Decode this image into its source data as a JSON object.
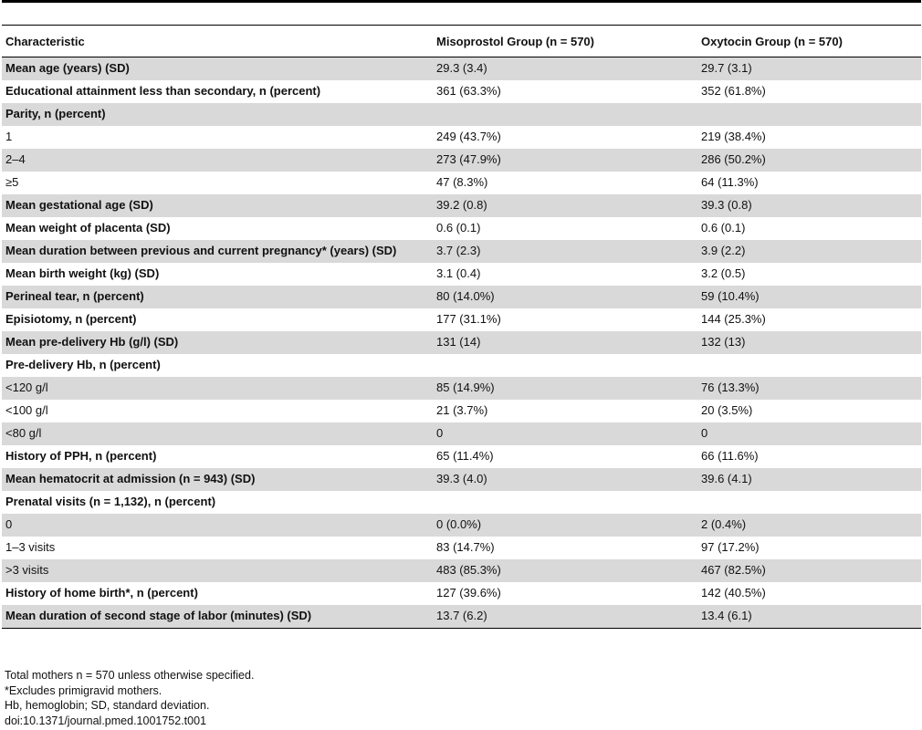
{
  "table": {
    "headers": [
      "Characteristic",
      "Misoprostol Group (n = 570)",
      "Oxytocin Group (n = 570)"
    ],
    "rows": [
      {
        "label": "Mean age (years) (SD)",
        "bold": true,
        "shaded": true,
        "misoprostol": "29.3 (3.4)",
        "oxytocin": "29.7 (3.1)"
      },
      {
        "label": "Educational attainment less than secondary, n (percent)",
        "bold": true,
        "shaded": false,
        "misoprostol": "361 (63.3%)",
        "oxytocin": "352 (61.8%)"
      },
      {
        "label": "Parity, n (percent)",
        "bold": true,
        "shaded": true,
        "misoprostol": "",
        "oxytocin": ""
      },
      {
        "label": "1",
        "bold": false,
        "shaded": false,
        "misoprostol": "249 (43.7%)",
        "oxytocin": "219 (38.4%)"
      },
      {
        "label": "2–4",
        "bold": false,
        "shaded": true,
        "misoprostol": "273 (47.9%)",
        "oxytocin": "286 (50.2%)"
      },
      {
        "label": "≥5",
        "bold": false,
        "shaded": false,
        "misoprostol": "47 (8.3%)",
        "oxytocin": "64 (11.3%)"
      },
      {
        "label": "Mean gestational age (SD)",
        "bold": true,
        "shaded": true,
        "misoprostol": "39.2 (0.8)",
        "oxytocin": "39.3 (0.8)"
      },
      {
        "label": "Mean weight of placenta (SD)",
        "bold": true,
        "shaded": false,
        "misoprostol": "0.6 (0.1)",
        "oxytocin": "0.6 (0.1)"
      },
      {
        "label": "Mean duration between previous and current pregnancy* (years) (SD)",
        "bold": true,
        "shaded": true,
        "misoprostol": "3.7 (2.3)",
        "oxytocin": "3.9 (2.2)"
      },
      {
        "label": "Mean birth weight (kg) (SD)",
        "bold": true,
        "shaded": false,
        "misoprostol": "3.1 (0.4)",
        "oxytocin": "3.2 (0.5)"
      },
      {
        "label": "Perineal tear, n (percent)",
        "bold": true,
        "shaded": true,
        "misoprostol": "80 (14.0%)",
        "oxytocin": "59 (10.4%)"
      },
      {
        "label": "Episiotomy, n (percent)",
        "bold": true,
        "shaded": false,
        "misoprostol": "177 (31.1%)",
        "oxytocin": "144 (25.3%)"
      },
      {
        "label": "Mean pre-delivery Hb (g/l) (SD)",
        "bold": true,
        "shaded": true,
        "misoprostol": "131 (14)",
        "oxytocin": "132 (13)"
      },
      {
        "label": "Pre-delivery Hb, n (percent)",
        "bold": true,
        "shaded": false,
        "misoprostol": "",
        "oxytocin": ""
      },
      {
        "label": "<120 g/l",
        "bold": false,
        "shaded": true,
        "misoprostol": "85 (14.9%)",
        "oxytocin": "76 (13.3%)"
      },
      {
        "label": "<100 g/l",
        "bold": false,
        "shaded": false,
        "misoprostol": "21 (3.7%)",
        "oxytocin": "20 (3.5%)"
      },
      {
        "label": "<80 g/l",
        "bold": false,
        "shaded": true,
        "misoprostol": "0",
        "oxytocin": "0"
      },
      {
        "label": "History of PPH, n (percent)",
        "bold": true,
        "shaded": false,
        "misoprostol": "65 (11.4%)",
        "oxytocin": "66 (11.6%)"
      },
      {
        "label": "Mean hematocrit at admission (n = 943) (SD)",
        "bold": true,
        "shaded": true,
        "misoprostol": "39.3 (4.0)",
        "oxytocin": "39.6 (4.1)"
      },
      {
        "label": "Prenatal visits (n = 1,132), n (percent)",
        "bold": true,
        "shaded": false,
        "misoprostol": "",
        "oxytocin": ""
      },
      {
        "label": "0",
        "bold": false,
        "shaded": true,
        "misoprostol": "0 (0.0%)",
        "oxytocin": "2 (0.4%)"
      },
      {
        "label": "1–3 visits",
        "bold": false,
        "shaded": false,
        "misoprostol": "83 (14.7%)",
        "oxytocin": "97 (17.2%)"
      },
      {
        "label": ">3 visits",
        "bold": false,
        "shaded": true,
        "misoprostol": "483 (85.3%)",
        "oxytocin": "467 (82.5%)"
      },
      {
        "label": "History of home birth*, n (percent)",
        "bold": true,
        "shaded": false,
        "misoprostol": "127 (39.6%)",
        "oxytocin": "142 (40.5%)"
      },
      {
        "label": "Mean duration of second stage of labor (minutes) (SD)",
        "bold": true,
        "shaded": true,
        "misoprostol": "13.7 (6.2)",
        "oxytocin": "13.4 (6.1)"
      }
    ]
  },
  "footnotes": [
    "Total mothers n = 570 unless otherwise specified.",
    "*Excludes primigravid mothers.",
    "Hb, hemoglobin; SD, standard deviation.",
    "doi:10.1371/journal.pmed.1001752.t001"
  ]
}
